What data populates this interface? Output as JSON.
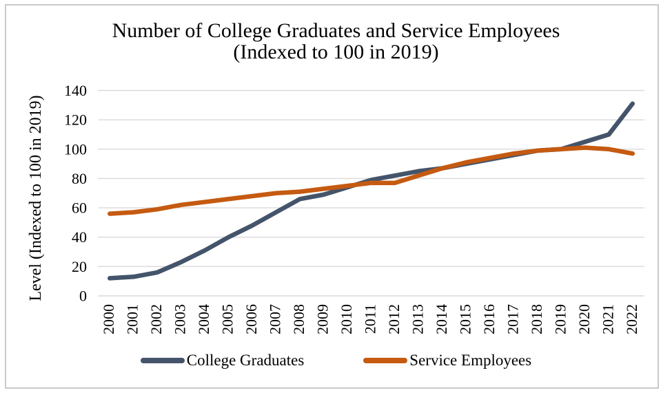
{
  "chart_data": {
    "type": "line",
    "title_line1": "Number of College Graduates and Service Employees",
    "title_line2": "(Indexed to 100 in 2019)",
    "ylabel": "Level (Indexed to 100 in 2019)",
    "xlabel": "",
    "categories": [
      "2000",
      "2001",
      "2002",
      "2003",
      "2004",
      "2005",
      "2006",
      "2007",
      "2008",
      "2009",
      "2010",
      "2011",
      "2012",
      "2013",
      "2014",
      "2015",
      "2016",
      "2017",
      "2018",
      "2019",
      "2020",
      "2021",
      "2022"
    ],
    "series": [
      {
        "name": "College Graduates",
        "color": "#44546A",
        "values": [
          12,
          13,
          16,
          23,
          31,
          40,
          48,
          57,
          66,
          69,
          74,
          79,
          82,
          85,
          87,
          90,
          93,
          96,
          99,
          100,
          105,
          110,
          131
        ]
      },
      {
        "name": "Service Employees",
        "color": "#C55A11",
        "values": [
          56,
          57,
          59,
          62,
          64,
          66,
          68,
          70,
          71,
          73,
          75,
          77,
          77,
          82,
          87,
          91,
          94,
          97,
          99,
          100,
          101,
          100,
          97
        ]
      }
    ],
    "ylim": [
      0,
      140
    ],
    "y_ticks": [
      0,
      20,
      40,
      60,
      80,
      100,
      120,
      140
    ],
    "grid": "horizontal-only",
    "legend_position": "bottom"
  },
  "style": {
    "gridline_color": "#D9D9D9",
    "frame_border_color": "#C9C9C9",
    "text_color": "#000000",
    "background_color": "#FFFFFF"
  }
}
